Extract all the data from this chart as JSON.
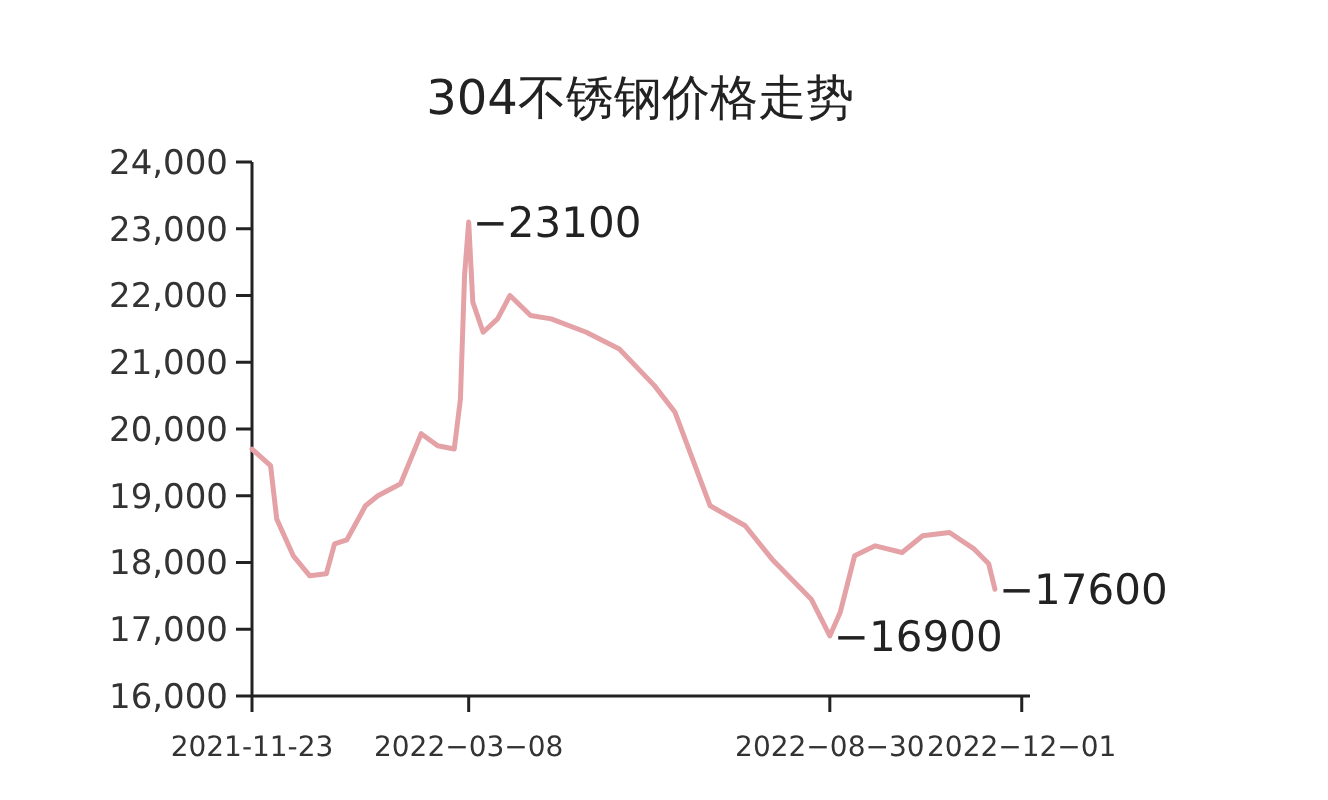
{
  "chart_data": {
    "type": "line",
    "title": "304不锈钢价格走势",
    "x": [
      "2021-11-23",
      "2021-12-02",
      "2021-12-05",
      "2021-12-13",
      "2021-12-21",
      "2021-12-29",
      "2022-01-02",
      "2022-01-08",
      "2022-01-17",
      "2022-01-23",
      "2022-02-03",
      "2022-02-13",
      "2022-02-21",
      "2022-03-01",
      "2022-03-04",
      "2022-03-06",
      "2022-03-08",
      "2022-03-10",
      "2022-03-15",
      "2022-03-22",
      "2022-03-28",
      "2022-04-07",
      "2022-04-17",
      "2022-05-04",
      "2022-05-20",
      "2022-06-06",
      "2022-06-16",
      "2022-07-03",
      "2022-07-20",
      "2022-08-02",
      "2022-08-21",
      "2022-08-30",
      "2022-09-04",
      "2022-09-11",
      "2022-09-21",
      "2022-10-04",
      "2022-10-14",
      "2022-10-27",
      "2022-11-08",
      "2022-11-15",
      "2022-11-18"
    ],
    "series": [
      {
        "color": "#e4a1a6",
        "values": [
          19700,
          19450,
          18650,
          18100,
          17800,
          17830,
          18280,
          18340,
          18850,
          19000,
          19180,
          19930,
          19750,
          19700,
          20450,
          22300,
          23100,
          21900,
          21450,
          21650,
          22000,
          21700,
          21650,
          21450,
          21200,
          20650,
          20250,
          18850,
          18550,
          18050,
          17450,
          16900,
          17250,
          18100,
          18250,
          18150,
          18400,
          18450,
          18200,
          17980,
          17600
        ]
      }
    ],
    "xlim": [
      "2021-11-23",
      "2022-12-05"
    ],
    "xticks": [
      {
        "value": "2021-11-23",
        "label": "2021-11-23"
      },
      {
        "value": "2022-03-08",
        "label": "2022−03−08"
      },
      {
        "value": "2022-08-30",
        "label": "2022−08−30"
      },
      {
        "value": "2022-12-01",
        "label": "2022−12−01"
      }
    ],
    "ylim": [
      16000,
      24000
    ],
    "yticks": [
      {
        "value": 16000,
        "label": "16,000"
      },
      {
        "value": 17000,
        "label": "17,000"
      },
      {
        "value": 18000,
        "label": "18,000"
      },
      {
        "value": 19000,
        "label": "19,000"
      },
      {
        "value": 20000,
        "label": "20,000"
      },
      {
        "value": 21000,
        "label": "21,000"
      },
      {
        "value": 22000,
        "label": "22,000"
      },
      {
        "value": 23000,
        "label": "23,000"
      },
      {
        "value": 24000,
        "label": "24,000"
      }
    ],
    "annotations": [
      {
        "text": "−23100",
        "x": "2022-03-08",
        "y": 23100
      },
      {
        "text": "−16900",
        "x": "2022-08-30",
        "y": 16900
      },
      {
        "text": "−17600",
        "x": "2022-11-18",
        "y": 17600
      }
    ],
    "grid": false,
    "marker": "none",
    "line_style": "solid"
  }
}
